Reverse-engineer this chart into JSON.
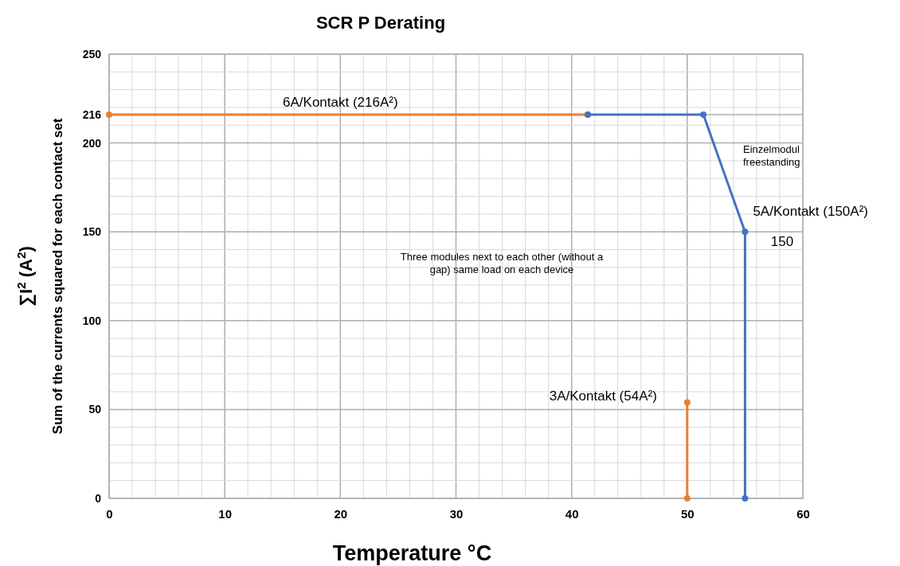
{
  "chart_data": {
    "type": "line",
    "title": "SCR P Derating",
    "xlabel": "Temperature °C",
    "ylabel": "∑I$^{2}$ (A$^{2}$)\nSum of the currents squared for each contact set",
    "xlim": [
      0,
      60
    ],
    "xticks": [
      0,
      10,
      20,
      30,
      40,
      50,
      60
    ],
    "ylim": [
      0,
      250
    ],
    "yticks": [
      0,
      50,
      100,
      150,
      200,
      216,
      250
    ],
    "grid": true,
    "marker": "circle",
    "line_style": "solid",
    "series": [
      {
        "color": "#ed7d31",
        "x": [
          0,
          41.4
        ],
        "values": [
          216,
          216
        ]
      },
      {
        "color": "#ed7d31",
        "x": [
          50,
          50
        ],
        "values": [
          54,
          0
        ]
      },
      {
        "color": "#4472c4",
        "x": [
          41.4,
          51.4,
          55,
          55
        ],
        "values": [
          216,
          216,
          150,
          0
        ]
      }
    ],
    "annotations": [
      {
        "text": "6A/Kontakt (216A²)",
        "x": 20,
        "y": 216
      },
      {
        "text": "5A/Kontakt (150A²)",
        "x": 55,
        "y": 150
      },
      "150",
      {
        "text": "3A/Kontakt (54A²)",
        "x": 50,
        "y": 54
      },
      "Einzelmodul freestanding",
      "Three modules next to each other (without a gap) same load on each device"
    ]
  }
}
